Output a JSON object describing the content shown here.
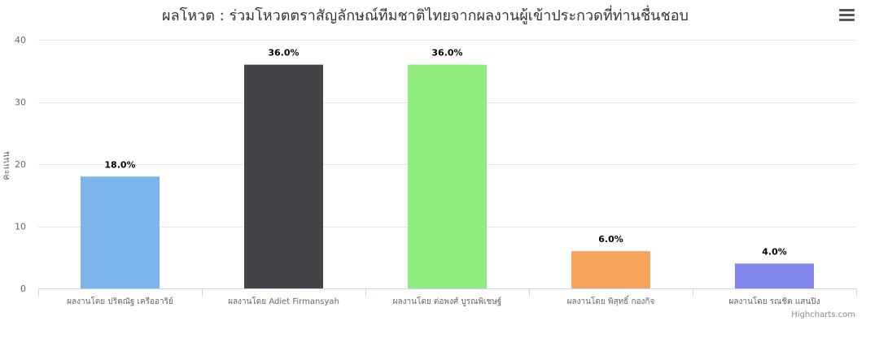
{
  "chart_data": {
    "type": "bar",
    "title": "ผลโหวต : ร่วมโหวตตราสัญลักษณ์ทีมชาติไทยจากผลงานผู้เข้าประกวดที่ท่านชื่นชอบ",
    "ylabel": "คะแนน",
    "xlabel": "",
    "ylim": [
      0,
      40
    ],
    "yticks": [
      "0",
      "10",
      "20",
      "30",
      "40"
    ],
    "grid": true,
    "categories": [
      "ผลงานโดย ปริตณัฐ เครืออาริย์",
      "ผลงานโดย Adiet Firmansyah",
      "ผลงานโดย ต่อพงศ์ บูรณพิเชษฐ์",
      "ผลงานโดย พิสุทธิ์ กองกิจ",
      "ผลงานโดย รณชิต แสนปิง"
    ],
    "values": [
      18,
      36,
      36,
      6,
      4
    ],
    "data_labels": [
      "18.0%",
      "36.0%",
      "36.0%",
      "6.0%",
      "4.0%"
    ],
    "colors": [
      "#7cb5ec",
      "#434348",
      "#90ed7d",
      "#f7a35c",
      "#8085e9"
    ]
  },
  "credits": "Highcharts.com",
  "menu_icon": "hamburger-menu-icon"
}
